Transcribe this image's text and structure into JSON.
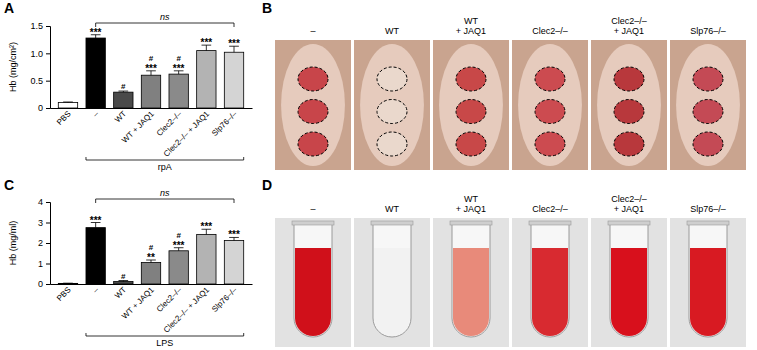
{
  "chart_data": [
    {
      "type": "bar",
      "title": "A",
      "y_label": "Hb (mg/cm²)",
      "categories": [
        "PBS",
        "–",
        "WT",
        "WT + JAQ1",
        "Clec2–/–",
        "Clec2–/– + JAQ1",
        "Slp76–/–"
      ],
      "values": [
        0.1,
        1.28,
        0.29,
        0.6,
        0.62,
        1.05,
        1.02
      ],
      "errors": [
        0.01,
        0.06,
        0.02,
        0.08,
        0.06,
        0.1,
        0.11
      ],
      "colors": [
        "#ffffff",
        "#000000",
        "#4a4a4a",
        "#808080",
        "#8a8a8a",
        "#b3b3b3",
        "#d4d4d4"
      ],
      "ylim": [
        0,
        1.5
      ],
      "yticks": [
        0,
        0.5,
        {
          "value": 1,
          "label": "1.0"
        },
        1.5
      ],
      "bar_annotations": [
        [],
        [
          "***"
        ],
        [
          "#"
        ],
        [
          "#",
          "***"
        ],
        [
          "#",
          "***"
        ],
        [
          "***"
        ],
        [
          "***"
        ]
      ],
      "comparison": {
        "label": "ns",
        "from": "–",
        "to": "Slp76–/–"
      },
      "group": {
        "label": "rpA",
        "from": "–",
        "to": "Slp76–/–"
      }
    },
    {
      "type": "bar",
      "title": "C",
      "y_label": "Hb (mg/ml)",
      "categories": [
        "PBS",
        "–",
        "WT",
        "WT + JAQ1",
        "Clec2–/–",
        "Clec2–/– + JAQ1",
        "Slp76–/–"
      ],
      "values": [
        0.03,
        2.75,
        0.12,
        1.05,
        1.62,
        2.42,
        2.12
      ],
      "errors": [
        0.01,
        0.25,
        0.05,
        0.12,
        0.15,
        0.25,
        0.15
      ],
      "colors": [
        "#ffffff",
        "#000000",
        "#4a4a4a",
        "#808080",
        "#8a8a8a",
        "#b3b3b3",
        "#d4d4d4"
      ],
      "ylim": [
        0,
        4
      ],
      "yticks": [
        0,
        1,
        2,
        3,
        4
      ],
      "bar_annotations": [
        [],
        [
          "***"
        ],
        [
          "#"
        ],
        [
          "#",
          "**"
        ],
        [
          "#",
          "***"
        ],
        [
          "***"
        ],
        [
          "***"
        ]
      ],
      "comparison": {
        "label": "ns",
        "from": "–",
        "to": "Slp76–/–"
      },
      "group": {
        "label": "LPS",
        "from": "–",
        "to": "Slp76–/–"
      }
    }
  ],
  "photo_panels": [
    {
      "title": "B",
      "images": [
        {
          "label": [
            "–"
          ],
          "color": "#c8454a"
        },
        {
          "label": [
            "WT"
          ],
          "color": "#ead8cc"
        },
        {
          "label": [
            "WT",
            "+ JAQ1"
          ],
          "color": "#c84848"
        },
        {
          "label": [
            "Clec2–/–"
          ],
          "color": "#cc4b50"
        },
        {
          "label": [
            "Clec2–/–",
            "+ JAQ1"
          ],
          "color": "#b8383c"
        },
        {
          "label": [
            "Slp76–/–"
          ],
          "color": "#c44a55"
        }
      ]
    },
    {
      "title": "D",
      "images": [
        {
          "label": [
            "–"
          ],
          "color": "#d0101a"
        },
        {
          "label": [
            "WT"
          ],
          "color": "#f2f2f2"
        },
        {
          "label": [
            "WT",
            "+ JAQ1"
          ],
          "color": "#e88a7a"
        },
        {
          "label": [
            "Clec2–/–"
          ],
          "color": "#d82a30"
        },
        {
          "label": [
            "Clec2–/–",
            "+ JAQ1"
          ],
          "color": "#d8101c"
        },
        {
          "label": [
            "Slp76–/–"
          ],
          "color": "#d81a22"
        }
      ]
    }
  ]
}
